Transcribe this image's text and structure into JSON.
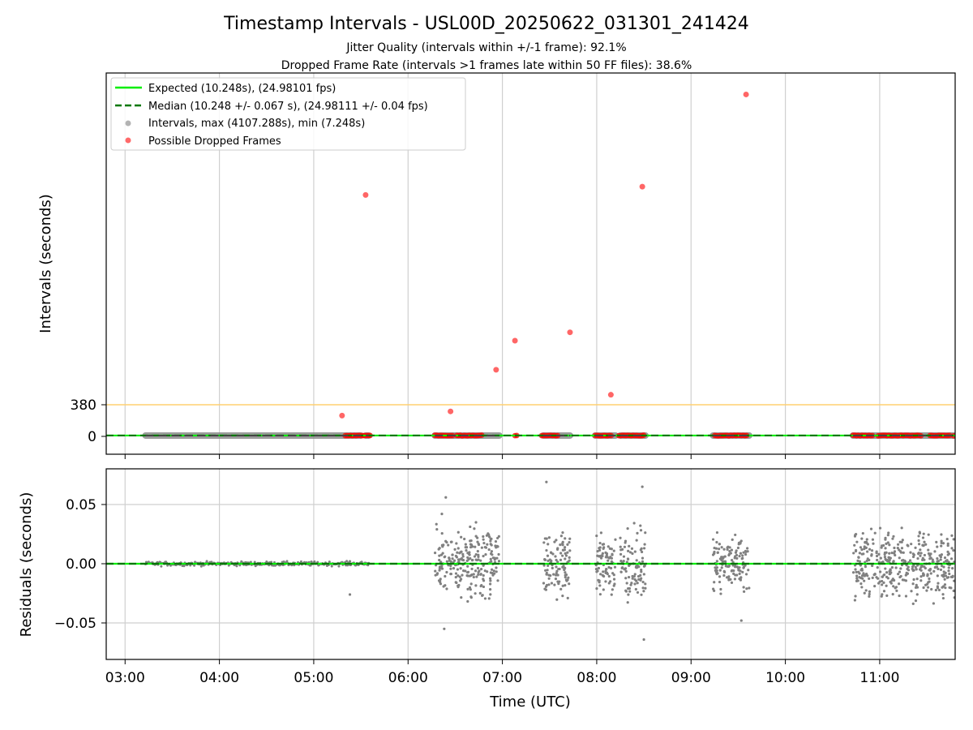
{
  "title": "Timestamp Intervals - USL00D_20250622_031301_241424",
  "subtitle_1": "Jitter Quality (intervals within +/-1 frame): 92.1%",
  "subtitle_2": "Dropped Frame Rate (intervals >1 frames late within 50 FF files): 38.6%",
  "colors": {
    "expected": "#00ee00",
    "median": "#007700",
    "intervals": "#808080",
    "dropped": "#ff0000",
    "threshold": "#ffd070",
    "grid": "#cfcfcf"
  },
  "chart_data": [
    {
      "type": "scatter",
      "name": "intervals",
      "ylabel": "Intervals (seconds)",
      "yticks": [
        "380",
        "0"
      ],
      "ytick_values": [
        380,
        0
      ],
      "threshold_line": 380,
      "expected_value": 10.248,
      "median_value": 10.248,
      "legend_position": "upper left",
      "legend": [
        {
          "label": "Expected (10.248s), (24.98101 fps)",
          "style": "line",
          "color": "#00ee00"
        },
        {
          "label": "Median (10.248 +/- 0.067 s), (24.98111 +/- 0.04 fps)",
          "style": "dashed",
          "color": "#007700"
        },
        {
          "label": "Intervals, max (4107.288s), min (7.248s)",
          "style": "dot",
          "color": "#999999"
        },
        {
          "label": "Possible Dropped Frames",
          "style": "dot",
          "color": "#ff4444"
        }
      ],
      "interval_segments": [
        [
          "03:13",
          "05:30"
        ],
        [
          "05:33",
          "05:35"
        ],
        [
          "06:17",
          "06:58"
        ],
        [
          "07:26",
          "07:43"
        ],
        [
          "07:59",
          "08:12"
        ],
        [
          "08:15",
          "08:31"
        ],
        [
          "09:14",
          "09:37"
        ],
        [
          "10:43",
          "11:48"
        ]
      ],
      "dropped_clusters": [
        [
          "05:20",
          "05:36"
        ],
        [
          "06:17",
          "06:29"
        ],
        [
          "06:31",
          "06:47"
        ],
        [
          "07:08",
          "07:10"
        ],
        [
          "07:25",
          "07:36"
        ],
        [
          "07:59",
          "08:10"
        ],
        [
          "08:14",
          "08:30"
        ],
        [
          "09:15",
          "09:36"
        ],
        [
          "10:43",
          "10:56"
        ],
        [
          "10:59",
          "11:27"
        ],
        [
          "11:32",
          "11:45"
        ],
        [
          "11:47",
          "11:48"
        ]
      ],
      "dropped_outliers": [
        {
          "x": "05:18",
          "y": 250
        },
        {
          "x": "05:33",
          "y": 2900
        },
        {
          "x": "06:27",
          "y": 300
        },
        {
          "x": "06:56",
          "y": 800
        },
        {
          "x": "07:08",
          "y": 1150
        },
        {
          "x": "07:43",
          "y": 1250
        },
        {
          "x": "08:09",
          "y": 500
        },
        {
          "x": "08:29",
          "y": 3000
        },
        {
          "x": "09:35",
          "y": 4107.288
        }
      ]
    },
    {
      "type": "scatter",
      "name": "residuals",
      "xlabel": "Time (UTC)",
      "ylabel": "Residuals (seconds)",
      "ylim": [
        -0.08,
        0.08
      ],
      "yticks": [
        "0.05",
        "0.00",
        "−0.05"
      ],
      "ytick_values": [
        0.05,
        0.0,
        -0.05
      ],
      "xticks": [
        "03:00",
        "04:00",
        "05:00",
        "06:00",
        "07:00",
        "08:00",
        "09:00",
        "10:00",
        "11:00"
      ],
      "xlim": [
        "02:48",
        "11:48"
      ],
      "dense_segments": [
        {
          "start": "06:17",
          "end": "06:58",
          "spread": 0.05
        },
        {
          "start": "07:26",
          "end": "07:43",
          "spread": 0.045
        },
        {
          "start": "07:59",
          "end": "08:12",
          "spread": 0.045
        },
        {
          "start": "08:15",
          "end": "08:31",
          "spread": 0.045
        },
        {
          "start": "09:14",
          "end": "09:37",
          "spread": 0.04
        },
        {
          "start": "10:43",
          "end": "11:48",
          "spread": 0.045
        }
      ],
      "quiet_segments": [
        {
          "start": "03:13",
          "end": "05:35",
          "spread": 0.003
        }
      ],
      "outlier_points": [
        {
          "x": "05:23",
          "y": -0.026
        },
        {
          "x": "05:23",
          "y": 0.002
        },
        {
          "x": "07:28",
          "y": 0.069
        },
        {
          "x": "08:29",
          "y": 0.065
        },
        {
          "x": "08:30",
          "y": -0.064
        },
        {
          "x": "06:23",
          "y": -0.055
        },
        {
          "x": "06:24",
          "y": 0.056
        },
        {
          "x": "09:32",
          "y": -0.048
        }
      ]
    }
  ]
}
